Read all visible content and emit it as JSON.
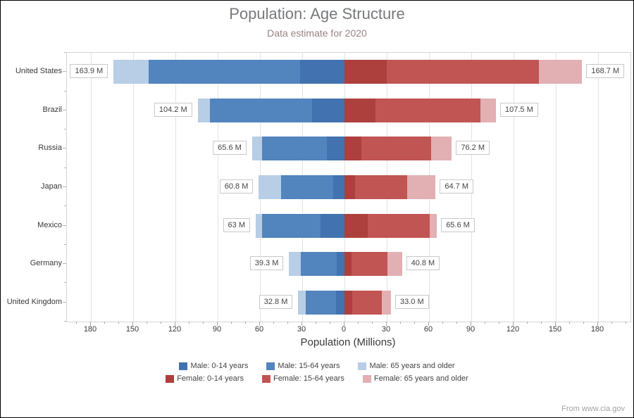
{
  "header": {
    "title": "Population: Age Structure",
    "subtitle": "Data estimate for 2020"
  },
  "footer": {
    "source": "From www.cia.gov"
  },
  "chart_data": {
    "type": "bar",
    "variant": "horizontal-diverging-stacked",
    "title": "Population: Age Structure",
    "subtitle": "Data estimate for 2020",
    "xlabel": "Population (Millions)",
    "xlim": [
      -197,
      203
    ],
    "x_major_ticks": [
      -180,
      -150,
      -120,
      -90,
      -60,
      -30,
      0,
      30,
      60,
      90,
      120,
      150,
      180
    ],
    "x_tick_labels": [
      "180",
      "150",
      "120",
      "90",
      "60",
      "30",
      "0",
      "30",
      "60",
      "90",
      "120",
      "150",
      "180"
    ],
    "x_minor_tick_step": 10,
    "grid": true,
    "legend_position": "bottom-center",
    "categories": [
      "United States",
      "Brazil",
      "Russia",
      "Japan",
      "Mexico",
      "Germany",
      "United Kingdom"
    ],
    "series": [
      {
        "name": "Male: 0-14 years",
        "side": "male",
        "stack_order": 0,
        "color": "#4272b0",
        "values": [
          31.4,
          22.8,
          12.6,
          8.0,
          17.1,
          5.3,
          5.9
        ]
      },
      {
        "name": "Male: 15-64 years",
        "side": "male",
        "stack_order": 1,
        "color": "#5284bd",
        "values": [
          107.4,
          72.6,
          45.7,
          37.2,
          41.6,
          25.9,
          21.5
        ]
      },
      {
        "name": "Male: 65 years and older",
        "side": "male",
        "stack_order": 2,
        "color": "#b8cde6",
        "values": [
          25.1,
          8.8,
          7.3,
          15.6,
          4.3,
          8.1,
          5.4
        ]
      },
      {
        "name": "Female: 0-14 years",
        "side": "female",
        "stack_order": 0,
        "color": "#ad403d",
        "values": [
          30.0,
          21.9,
          11.9,
          7.6,
          16.3,
          5.0,
          5.7
        ]
      },
      {
        "name": "Female: 15-64 years",
        "side": "female",
        "stack_order": 1,
        "color": "#c05553",
        "values": [
          107.8,
          74.8,
          49.6,
          37.0,
          44.1,
          25.4,
          20.7
        ]
      },
      {
        "name": "Female: 65 years and older",
        "side": "female",
        "stack_order": 2,
        "color": "#e2afb3",
        "values": [
          30.9,
          10.8,
          14.7,
          20.1,
          5.2,
          10.4,
          6.6
        ]
      }
    ],
    "total_labels": {
      "male": [
        "163.9 M",
        "104.2 M",
        "65.6 M",
        "60.8 M",
        "63 M",
        "39.3 M",
        "32.8 M"
      ],
      "female": [
        "168.7 M",
        "107.5 M",
        "76.2 M",
        "64.7 M",
        "65.6 M",
        "40.8 M",
        "33.0 M"
      ]
    }
  },
  "colors": {
    "male_0_14": "#4272b0",
    "male_15_64": "#5284bd",
    "male_65_plus": "#b8cde6",
    "female_0_14": "#ad403d",
    "female_15_64": "#c05553",
    "female_65_plus": "#e2afb3",
    "gridline": "#e3e3e3",
    "plot_border": "#d5d5d5",
    "title_text": "#77797d",
    "subtitle_text": "#9a8382"
  }
}
